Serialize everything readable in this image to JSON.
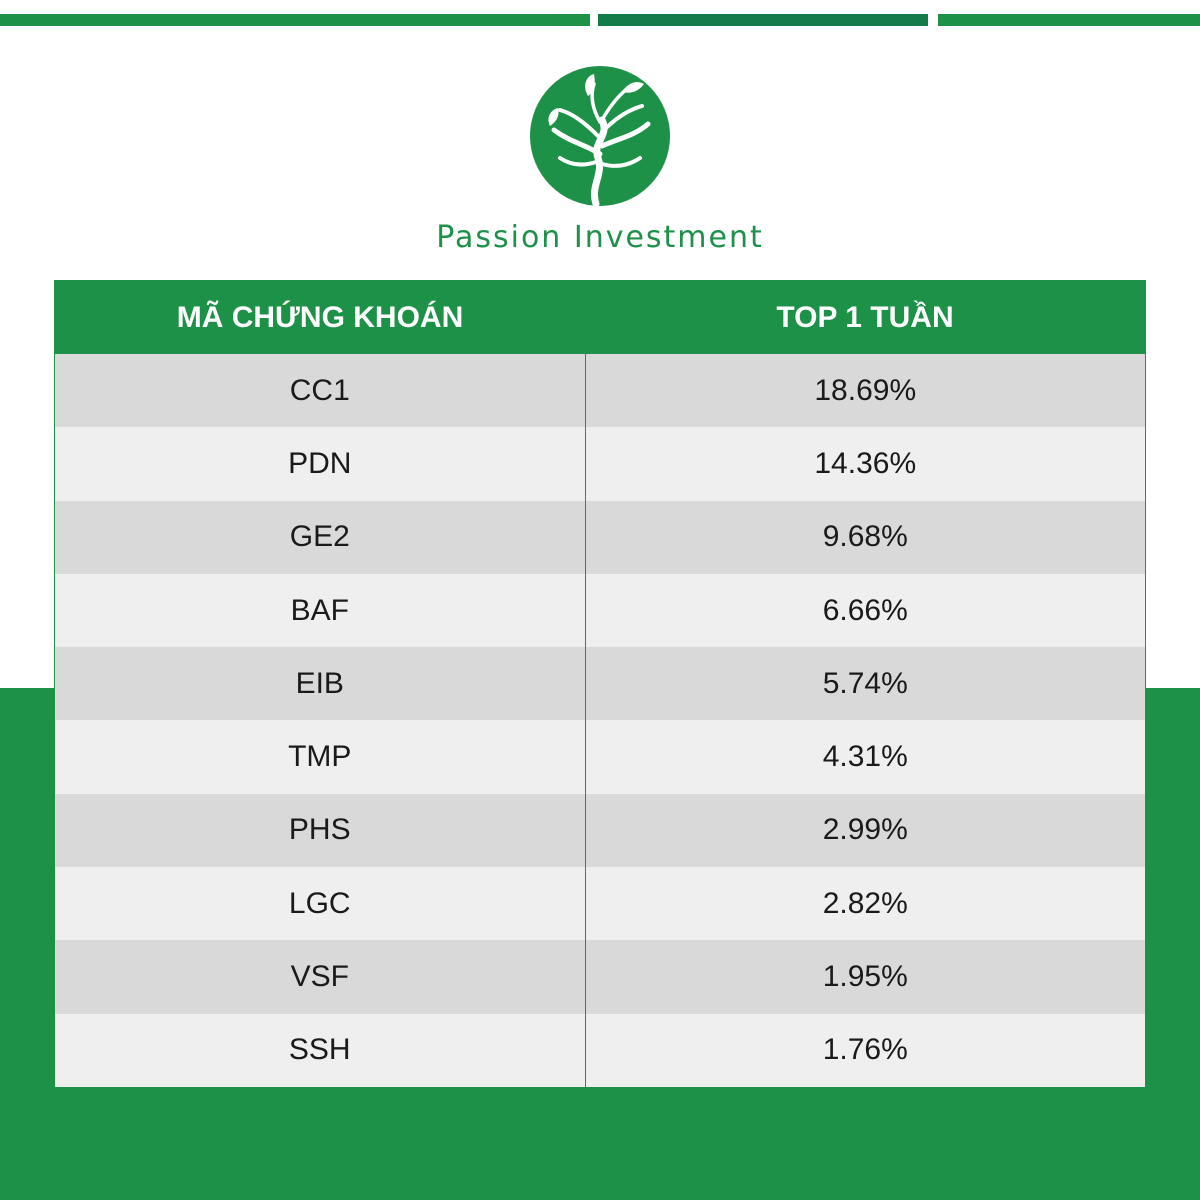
{
  "brand": {
    "name": "Passion Investment",
    "color": "#1e9148",
    "logo_icon": "tree-circle-logo"
  },
  "table": {
    "headers": [
      "MÃ CHỨNG KHOÁN",
      "TOP 1 TUẦN"
    ],
    "rows": [
      {
        "code": "CC1",
        "value": "18.69%"
      },
      {
        "code": "PDN",
        "value": "14.36%"
      },
      {
        "code": "GE2",
        "value": "9.68%"
      },
      {
        "code": "BAF",
        "value": "6.66%"
      },
      {
        "code": "EIB",
        "value": "5.74%"
      },
      {
        "code": "TMP",
        "value": "4.31%"
      },
      {
        "code": "PHS",
        "value": "2.99%"
      },
      {
        "code": "LGC",
        "value": "2.82%"
      },
      {
        "code": "VSF",
        "value": "1.95%"
      },
      {
        "code": "SSH",
        "value": "1.76%"
      }
    ]
  }
}
